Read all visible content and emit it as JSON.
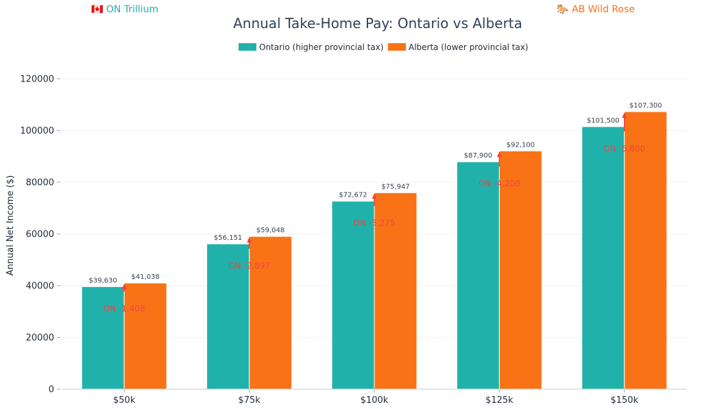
{
  "badges": {
    "left": "🇨🇦 ON Trillium",
    "right": "🐎 AB Wild Rose"
  },
  "chart_data": {
    "type": "bar",
    "title": "Annual Take-Home Pay: Ontario vs Alberta",
    "xlabel": "",
    "ylabel": "Annual Net Income ($)",
    "ylim": [
      0,
      120000
    ],
    "yticks": [
      0,
      20000,
      40000,
      60000,
      80000,
      100000,
      120000
    ],
    "categories": [
      "$50k",
      "$75k",
      "$100k",
      "$125k",
      "$150k"
    ],
    "series": [
      {
        "name": "Ontario (higher provincial tax)",
        "color": "#20b2aa",
        "values": [
          39630,
          56151,
          72672,
          87900,
          101500
        ],
        "labels": [
          "$39,630",
          "$56,151",
          "$72,672",
          "$87,900",
          "$101,500"
        ]
      },
      {
        "name": "Alberta (lower provincial tax)",
        "color": "#f97316",
        "values": [
          41038,
          59048,
          75947,
          92100,
          107300
        ],
        "labels": [
          "$41,038",
          "$59,048",
          "$75,947",
          "$92,100",
          "$107,300"
        ]
      }
    ],
    "annotations": [
      "ON -1,408",
      "ON -2,897",
      "ON -3,275",
      "ON -4,200",
      "ON -5,800"
    ],
    "annotation_color": "#ef4444",
    "grid": true,
    "legend_position": "top-center"
  }
}
